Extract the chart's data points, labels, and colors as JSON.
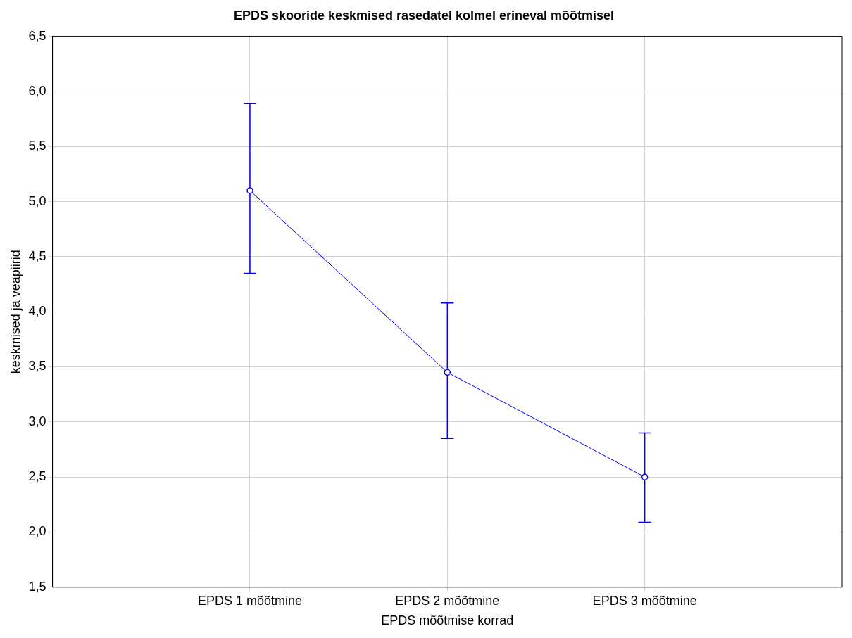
{
  "chart_data": {
    "type": "line",
    "title": "EPDS skooride keskmised rasedatel kolmel erineval mõõtmisel",
    "xlabel": "EPDS mõõtmise korrad",
    "ylabel": "keskmised ja veapiirid",
    "categories": [
      "EPDS 1 mõõtmine",
      "EPDS 2 mõõtmine",
      "EPDS 3 mõõtmine"
    ],
    "series": [
      {
        "color": "#0000ff",
        "values": [
          5.1,
          3.45,
          2.5
        ],
        "errors": [
          [
            4.35,
            5.89
          ],
          [
            2.85,
            4.08
          ],
          [
            2.09,
            2.9
          ]
        ]
      }
    ],
    "ylim": [
      1.5,
      6.5
    ],
    "yticks": [
      {
        "value": 1.5,
        "label": "1,5"
      },
      {
        "value": 2,
        "label": "2,0"
      },
      {
        "value": 2.5,
        "label": "2,5"
      },
      {
        "value": 3,
        "label": "3,0"
      },
      {
        "value": 3.5,
        "label": "3,5"
      },
      {
        "value": 4,
        "label": "4,0"
      },
      {
        "value": 4.5,
        "label": "4,5"
      },
      {
        "value": 5,
        "label": "5,0"
      },
      {
        "value": 5.5,
        "label": "5,5"
      },
      {
        "value": 6,
        "label": "6,0"
      },
      {
        "value": 6.5,
        "label": "6,5"
      }
    ],
    "grid": true,
    "marker": "circle",
    "line_style": "solid",
    "legend": false
  }
}
